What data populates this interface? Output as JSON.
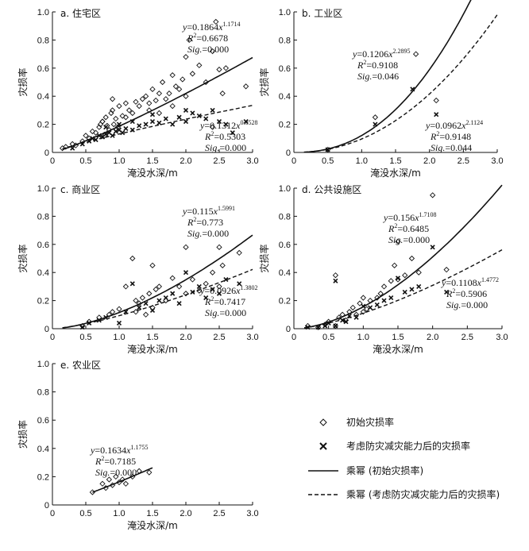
{
  "chart_data": [
    {
      "type": "scatter",
      "title": "a. 住宅区",
      "xlabel": "淹没水深/m",
      "ylabel": "灾损率",
      "xlim": [
        0,
        3.0
      ],
      "ylim": [
        0,
        1.0
      ],
      "xticks": [
        "0",
        "0.5",
        "1.0",
        "1.5",
        "2.0",
        "2.5",
        "3.0"
      ],
      "yticks": [
        "0",
        "0.2",
        "0.4",
        "0.6",
        "0.8",
        "1.0"
      ],
      "fits": [
        {
          "a": 0.1864,
          "b": 1.1714,
          "a_label": "0.1864",
          "b_label": "1.1714",
          "r2": "0.6678",
          "sig": "0.000",
          "style": "solid"
        },
        {
          "a": 0.1312,
          "b": 0.8528,
          "a_label": "0.1312",
          "b_label": "0.8528",
          "r2": "0.5303",
          "sig": "0.000",
          "style": "dashed"
        }
      ],
      "series": [
        {
          "name": "初始灾损率",
          "marker": "diamond",
          "x": [
            0.15,
            0.2,
            0.3,
            0.35,
            0.45,
            0.5,
            0.55,
            0.6,
            0.65,
            0.7,
            0.72,
            0.75,
            0.78,
            0.8,
            0.82,
            0.85,
            0.88,
            0.9,
            0.92,
            0.95,
            0.98,
            1.0,
            1.05,
            1.1,
            1.15,
            1.2,
            1.25,
            1.3,
            1.35,
            1.4,
            1.45,
            1.5,
            1.55,
            1.6,
            1.65,
            1.7,
            1.75,
            1.8,
            1.85,
            1.9,
            1.95,
            2.0,
            2.05,
            2.1,
            2.2,
            2.3,
            2.4,
            2.45,
            2.5,
            2.55,
            2.6,
            2.9,
            0.75,
            0.9,
            1.1,
            1.45,
            1.6,
            1.8,
            2.0,
            2.4
          ],
          "y": [
            0.03,
            0.04,
            0.06,
            0.05,
            0.08,
            0.12,
            0.1,
            0.15,
            0.14,
            0.18,
            0.2,
            0.22,
            0.12,
            0.25,
            0.19,
            0.16,
            0.28,
            0.3,
            0.2,
            0.24,
            0.18,
            0.33,
            0.26,
            0.35,
            0.3,
            0.28,
            0.36,
            0.33,
            0.38,
            0.4,
            0.35,
            0.45,
            0.37,
            0.42,
            0.5,
            0.38,
            0.42,
            0.55,
            0.47,
            0.45,
            0.52,
            0.68,
            0.8,
            0.56,
            0.62,
            0.5,
            0.72,
            0.93,
            0.59,
            0.42,
            0.6,
            0.47,
            0.22,
            0.38,
            0.25,
            0.3,
            0.28,
            0.33,
            0.4,
            0.18
          ]
        },
        {
          "name": "考虑防灾减灾能力后的灾损率",
          "marker": "cross",
          "x": [
            0.3,
            0.45,
            0.55,
            0.6,
            0.65,
            0.7,
            0.75,
            0.8,
            0.85,
            0.9,
            0.95,
            1.0,
            1.05,
            1.1,
            1.2,
            1.3,
            1.4,
            1.5,
            1.6,
            1.7,
            1.8,
            1.9,
            2.0,
            2.1,
            2.2,
            2.3,
            2.4,
            2.5,
            2.6,
            2.7,
            2.9,
            0.8,
            1.0,
            1.2,
            1.5,
            2.0
          ],
          "y": [
            0.03,
            0.06,
            0.08,
            0.1,
            0.09,
            0.12,
            0.11,
            0.13,
            0.14,
            0.12,
            0.15,
            0.16,
            0.14,
            0.17,
            0.16,
            0.19,
            0.2,
            0.22,
            0.21,
            0.24,
            0.2,
            0.25,
            0.22,
            0.28,
            0.26,
            0.24,
            0.3,
            0.22,
            0.2,
            0.14,
            0.22,
            0.18,
            0.2,
            0.22,
            0.27,
            0.3
          ]
        }
      ]
    },
    {
      "type": "scatter",
      "title": "b. 工业区",
      "xlabel": "淹没水深/m",
      "ylabel": "灾损率",
      "xlim": [
        0,
        3.0
      ],
      "ylim": [
        0,
        1.0
      ],
      "xticks": [
        "0",
        "0.5",
        "1.0",
        "1.5",
        "2.0",
        "2.5",
        "3.0"
      ],
      "yticks": [
        "0",
        "0.2",
        "0.4",
        "0.6",
        "0.8",
        "1.0"
      ],
      "fits": [
        {
          "a": 0.1206,
          "b": 2.2895,
          "a_label": "0.1206",
          "b_label": "2.2895",
          "r2": "0.9108",
          "sig": "0.046",
          "style": "solid"
        },
        {
          "a": 0.0962,
          "b": 2.1124,
          "a_label": "0.0962",
          "b_label": "2.1124",
          "r2": "0.9148",
          "sig": "0.044",
          "style": "dashed"
        }
      ],
      "series": [
        {
          "name": "初始灾损率",
          "marker": "diamond",
          "x": [
            0.5,
            1.2,
            1.8,
            2.1
          ],
          "y": [
            0.02,
            0.25,
            0.7,
            0.37
          ]
        },
        {
          "name": "考虑防灾减灾能力后的灾损率",
          "marker": "cross",
          "x": [
            0.5,
            1.2,
            1.75,
            2.1
          ],
          "y": [
            0.02,
            0.2,
            0.45,
            0.27
          ]
        }
      ]
    },
    {
      "type": "scatter",
      "title": "c. 商业区",
      "xlabel": "淹没水深/m",
      "ylabel": "灾损率",
      "xlim": [
        0,
        3.0
      ],
      "ylim": [
        0,
        1.0
      ],
      "xticks": [
        "0",
        "0.5",
        "1.0",
        "1.5",
        "2.0",
        "2.5",
        "3.0"
      ],
      "yticks": [
        "0",
        "0.2",
        "0.4",
        "0.6",
        "0.8",
        "1.0"
      ],
      "fits": [
        {
          "a": 0.115,
          "b": 1.5991,
          "a_label": "0.115",
          "b_label": "1.5991",
          "r2": "0.773",
          "sig": "0.000",
          "style": "solid"
        },
        {
          "a": 0.0926,
          "b": 1.3802,
          "a_label": "0.0926",
          "b_label": "1.3802",
          "r2": "0.7417",
          "sig": "0.000",
          "style": "dashed"
        }
      ],
      "series": [
        {
          "name": "初始灾损率",
          "marker": "diamond",
          "x": [
            0.45,
            0.55,
            0.7,
            0.85,
            0.9,
            1.0,
            1.1,
            1.2,
            1.25,
            1.3,
            1.35,
            1.4,
            1.45,
            1.5,
            1.55,
            1.6,
            1.7,
            1.8,
            1.9,
            2.0,
            2.1,
            2.2,
            2.3,
            2.4,
            2.5,
            2.55,
            2.8,
            1.25,
            1.5,
            2.0,
            2.5
          ],
          "y": [
            0.02,
            0.05,
            0.08,
            0.1,
            0.12,
            0.14,
            0.3,
            0.5,
            0.2,
            0.18,
            0.22,
            0.1,
            0.25,
            0.45,
            0.28,
            0.3,
            0.2,
            0.36,
            0.3,
            0.58,
            0.35,
            0.27,
            0.32,
            0.4,
            0.58,
            0.45,
            0.54,
            0.12,
            0.15,
            0.25,
            0.3
          ]
        },
        {
          "name": "考虑防灾减灾能力后的灾损率",
          "marker": "cross",
          "x": [
            0.45,
            0.55,
            0.7,
            0.8,
            1.0,
            1.1,
            1.2,
            1.3,
            1.4,
            1.5,
            1.6,
            1.7,
            1.8,
            1.9,
            2.0,
            2.1,
            2.2,
            2.3,
            2.4,
            2.5,
            2.6,
            2.8
          ],
          "y": [
            0.01,
            0.04,
            0.06,
            0.08,
            0.04,
            0.12,
            0.32,
            0.15,
            0.18,
            0.13,
            0.2,
            0.22,
            0.25,
            0.18,
            0.4,
            0.26,
            0.3,
            0.22,
            0.28,
            0.25,
            0.35,
            0.32
          ]
        }
      ]
    },
    {
      "type": "scatter",
      "title": "d. 公共设施区",
      "xlabel": "淹没水深/m",
      "ylabel": "灾损率",
      "xlim": [
        0,
        3.0
      ],
      "ylim": [
        0,
        1.0
      ],
      "xticks": [
        "0",
        "0.5",
        "1.0",
        "1.5",
        "2.0",
        "2.5",
        "3.0"
      ],
      "yticks": [
        "0",
        "0.2",
        "0.4",
        "0.6",
        "0.8",
        "1.0"
      ],
      "fits": [
        {
          "a": 0.156,
          "b": 1.7108,
          "a_label": "0.156",
          "b_label": "1.7108",
          "r2": "0.6485",
          "sig": "0.000",
          "style": "solid"
        },
        {
          "a": 0.1108,
          "b": 1.4772,
          "a_label": "0.1108",
          "b_label": "1.4772",
          "r2": "0.5906",
          "sig": "0.000",
          "style": "dashed"
        }
      ],
      "series": [
        {
          "name": "初始灾损率",
          "marker": "diamond",
          "x": [
            0.2,
            0.35,
            0.45,
            0.5,
            0.6,
            0.65,
            0.7,
            0.75,
            0.8,
            0.85,
            0.9,
            0.95,
            1.0,
            1.05,
            1.1,
            1.2,
            1.25,
            1.3,
            1.4,
            1.45,
            1.5,
            1.6,
            1.7,
            1.8,
            2.0,
            2.2,
            0.6,
            1.0,
            1.5
          ],
          "y": [
            0.02,
            0.01,
            0.03,
            0.05,
            0.38,
            0.08,
            0.1,
            0.06,
            0.12,
            0.15,
            0.1,
            0.18,
            0.22,
            0.14,
            0.2,
            0.22,
            0.25,
            0.3,
            0.34,
            0.45,
            0.62,
            0.38,
            0.5,
            0.4,
            0.95,
            0.42,
            0.02,
            0.12,
            0.35
          ]
        },
        {
          "name": "考虑防灾减灾能力后的灾损率",
          "marker": "cross",
          "x": [
            0.2,
            0.35,
            0.45,
            0.5,
            0.6,
            0.7,
            0.75,
            0.8,
            0.9,
            1.0,
            1.1,
            1.2,
            1.3,
            1.4,
            1.5,
            1.6,
            1.7,
            1.8,
            2.0,
            2.2,
            0.6
          ],
          "y": [
            0.01,
            0.01,
            0.02,
            0.04,
            0.34,
            0.06,
            0.05,
            0.09,
            0.08,
            0.16,
            0.15,
            0.17,
            0.2,
            0.22,
            0.36,
            0.26,
            0.28,
            0.3,
            0.58,
            0.26,
            0.02
          ]
        }
      ]
    },
    {
      "type": "scatter",
      "title": "e. 农业区",
      "xlabel": "淹没水深/m",
      "ylabel": "灾损率",
      "xlim": [
        0,
        3.0
      ],
      "ylim": [
        0,
        1.0
      ],
      "xticks": [
        "0",
        "0.5",
        "1.0",
        "1.5",
        "2.0",
        "2.5",
        "3.0"
      ],
      "yticks": [
        "0",
        "0.2",
        "0.4",
        "0.6",
        "0.8",
        "1.0"
      ],
      "fits": [
        {
          "a": 0.1634,
          "b": 1.1755,
          "a_label": "0.1634",
          "b_label": "1.1755",
          "r2": "0.7185",
          "sig": "0.000",
          "style": "solid",
          "range": [
            0.6,
            1.5
          ]
        }
      ],
      "series": [
        {
          "name": "初始灾损率",
          "marker": "diamond",
          "x": [
            0.6,
            0.75,
            0.8,
            0.85,
            0.9,
            0.95,
            1.0,
            1.05,
            1.1,
            1.2,
            1.3,
            1.45
          ],
          "y": [
            0.09,
            0.15,
            0.12,
            0.18,
            0.14,
            0.2,
            0.16,
            0.18,
            0.15,
            0.2,
            0.24,
            0.23
          ]
        }
      ]
    }
  ],
  "legend": {
    "items": [
      {
        "label": "初始灾损率",
        "marker": "diamond"
      },
      {
        "label": "考虑防灾减灾能力后的灾损率",
        "marker": "cross"
      },
      {
        "label": "乘幂 (初始灾损率)",
        "line": "solid"
      },
      {
        "label": "乘幂 (考虑防灾减灾能力后的灾损率)",
        "line": "dashed"
      }
    ]
  }
}
